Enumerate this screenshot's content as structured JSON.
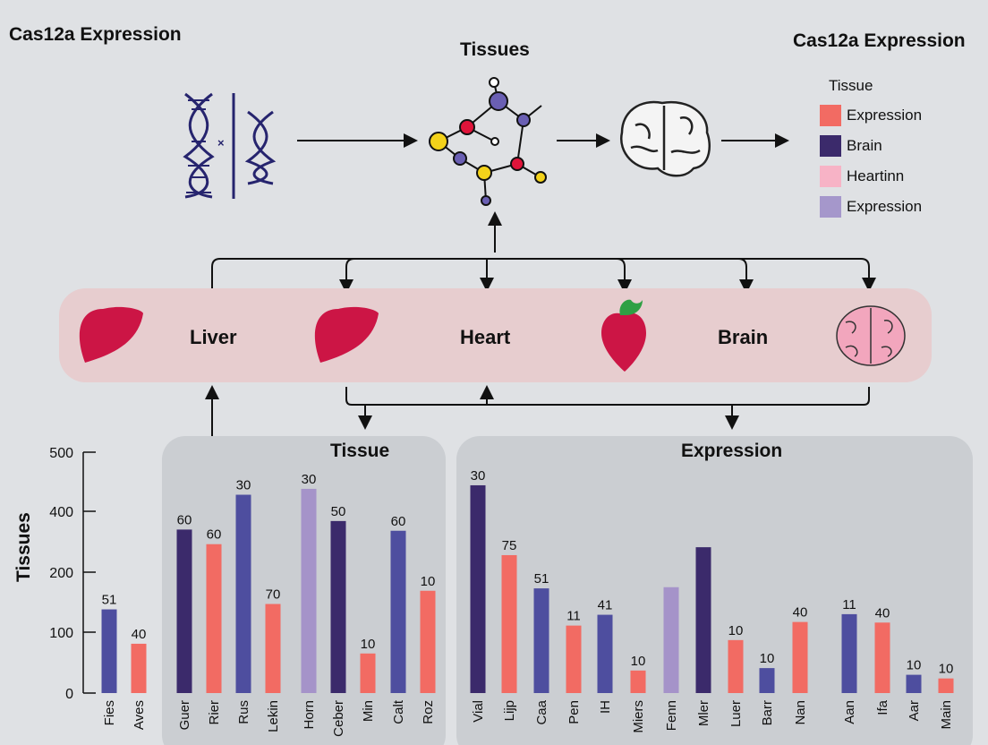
{
  "header": {
    "left_title": "Cas12a Expression",
    "center_title": "Tissues",
    "right_title": "Cas12a Expression"
  },
  "legend": {
    "title": "Tissue",
    "items": [
      {
        "label": "Expression",
        "color": "#f26b63"
      },
      {
        "label": "Brain",
        "color": "#3b2a6b"
      },
      {
        "label": "Heartinn",
        "color": "#f7b3c6"
      },
      {
        "label": "Expression",
        "color": "#a597cb"
      }
    ]
  },
  "organs": {
    "labels": [
      "Liver",
      "Heart",
      "Brain"
    ]
  },
  "colors": {
    "dark": "#3b2a6b",
    "blue": "#4e4e9f",
    "coral": "#f26b63",
    "lavender": "#a593c9",
    "organ_red": "#cc1545",
    "brain_pink": "#f2a6bd"
  },
  "chart_data": {
    "type": "bar",
    "ylabel": "Tissues",
    "yticks": [
      0,
      100,
      200,
      400,
      500
    ],
    "ylim": [
      0,
      500
    ],
    "panels": [
      {
        "title": "Tissue"
      },
      {
        "title": "Expression"
      }
    ],
    "categories": [
      "Fies",
      "Aves",
      "Guer",
      "Rier",
      "Rus",
      "Lekin",
      "Horn",
      "Ceber",
      "Min",
      "Calt",
      "Roz",
      "Vial",
      "Lijp",
      "Caa",
      "Pen",
      "IH",
      "Miers",
      "Fenn",
      "Mler",
      "Luer",
      "Barr",
      "Nan",
      "Aan",
      "Ifa",
      "Aar",
      "Main"
    ],
    "values": [
      138,
      81,
      340,
      292,
      428,
      147,
      438,
      368,
      65,
      336,
      169,
      444,
      256,
      173,
      111,
      129,
      37,
      175,
      282,
      87,
      41,
      117,
      130,
      116,
      30,
      24
    ],
    "data_labels": [
      "51",
      "40",
      "60",
      "60",
      "30",
      "70",
      "30",
      "50",
      "10",
      "60",
      "10",
      "30",
      "75",
      "51",
      "11",
      "41",
      "10",
      "",
      "",
      "10",
      "10",
      "40",
      "11",
      "40",
      "10",
      "10"
    ],
    "series_color": [
      "blue",
      "coral",
      "dark",
      "coral",
      "blue",
      "coral",
      "lavender",
      "dark",
      "coral",
      "blue",
      "coral",
      "dark",
      "coral",
      "blue",
      "coral",
      "blue",
      "coral",
      "lavender",
      "dark",
      "coral",
      "blue",
      "coral",
      "blue",
      "coral",
      "blue",
      "coral"
    ]
  }
}
